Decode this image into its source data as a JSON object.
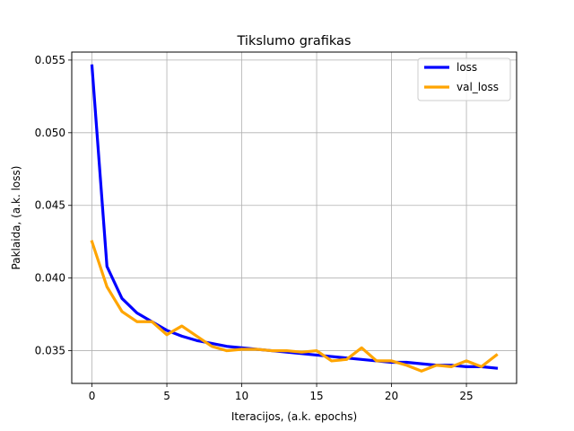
{
  "chart_data": {
    "type": "line",
    "title": "Tikslumo grafikas",
    "xlabel": "Iteracijos, (a.k. epochs)",
    "ylabel": "Paklaida, (a.k. loss)",
    "xlim": [
      -1.35,
      28.35
    ],
    "ylim": [
      0.03275,
      0.05555
    ],
    "xticks": [
      0,
      5,
      10,
      15,
      20,
      25
    ],
    "yticks": [
      0.035,
      0.04,
      0.045,
      0.05,
      0.055
    ],
    "ytick_labels": [
      "0.035",
      "0.040",
      "0.045",
      "0.050",
      "0.055"
    ],
    "grid": true,
    "legend_position": "upper-right",
    "x": [
      0,
      1,
      2,
      3,
      4,
      5,
      6,
      7,
      8,
      9,
      10,
      11,
      12,
      13,
      14,
      15,
      16,
      17,
      18,
      19,
      20,
      21,
      22,
      23,
      24,
      25,
      26,
      27
    ],
    "series": [
      {
        "name": "loss",
        "color": "#0000ff",
        "values": [
          0.0546,
          0.0408,
          0.0386,
          0.0376,
          0.037,
          0.0364,
          0.036,
          0.0357,
          0.0355,
          0.0353,
          0.0352,
          0.0351,
          0.035,
          0.0349,
          0.0348,
          0.0347,
          0.0346,
          0.0345,
          0.0344,
          0.0343,
          0.0342,
          0.0342,
          0.0341,
          0.034,
          0.034,
          0.0339,
          0.0339,
          0.0338
        ]
      },
      {
        "name": "val_loss",
        "color": "#ffa500",
        "values": [
          0.0425,
          0.0394,
          0.0377,
          0.037,
          0.037,
          0.0361,
          0.0367,
          0.036,
          0.0353,
          0.035,
          0.0351,
          0.0351,
          0.035,
          0.035,
          0.0349,
          0.035,
          0.0343,
          0.0344,
          0.0352,
          0.0343,
          0.0343,
          0.034,
          0.0336,
          0.034,
          0.0339,
          0.0343,
          0.0339,
          0.0347
        ]
      }
    ]
  }
}
